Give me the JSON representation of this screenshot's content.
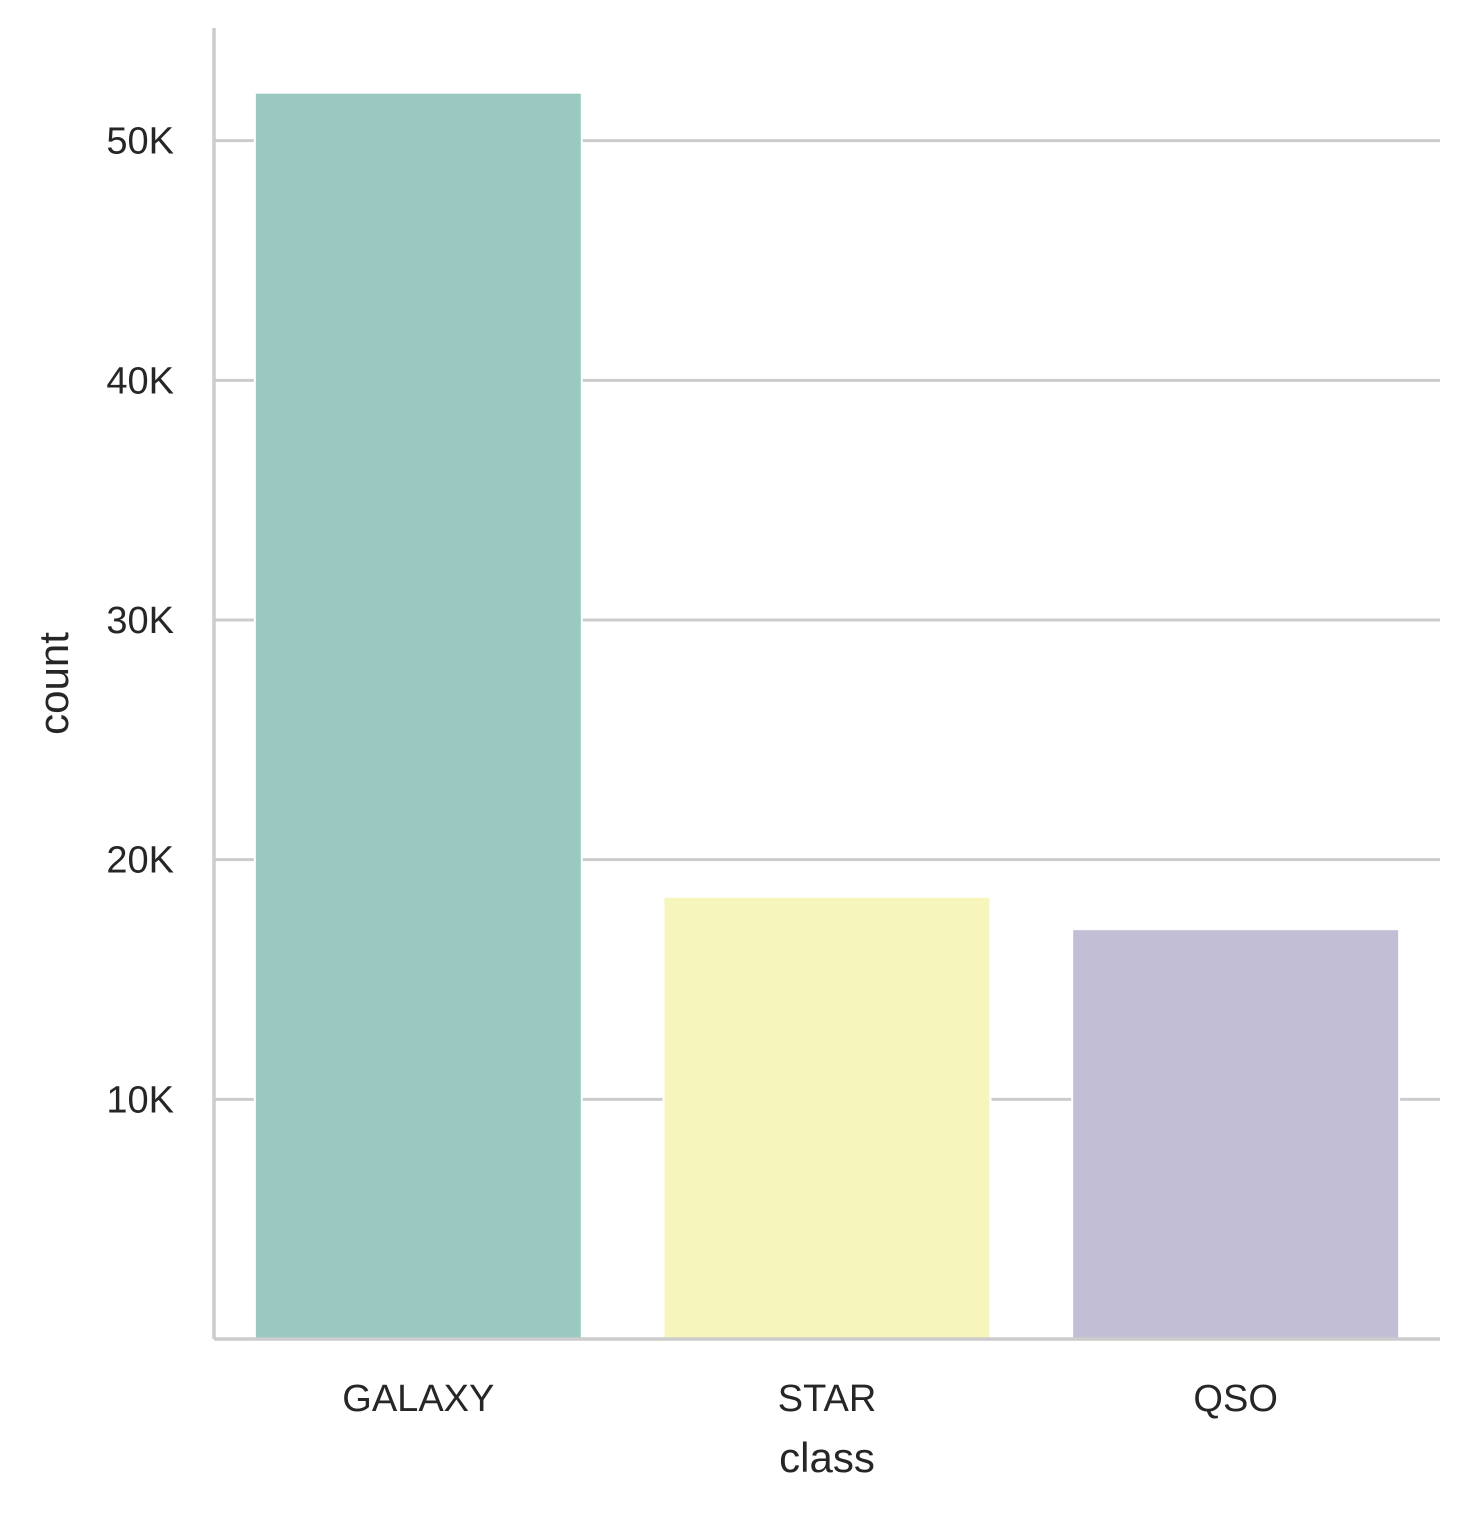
{
  "chart_data": {
    "type": "bar",
    "categories": [
      "GALAXY",
      "STAR",
      "QSO"
    ],
    "values": [
      52000,
      18450,
      17100
    ],
    "colors": [
      "#99c9c1",
      "#f6f5bb",
      "#c2bed6"
    ],
    "title": "",
    "xlabel": "class",
    "ylabel": "count",
    "ylim": [
      0,
      54700
    ],
    "yticks": [
      10000,
      20000,
      30000,
      40000,
      50000
    ],
    "ytick_labels": [
      "10K",
      "20K",
      "30K",
      "40K",
      "50K"
    ],
    "grid": "horizontal",
    "grid_color": "#cccccc",
    "axis_color": "#cccccc",
    "text_color": "#262626"
  }
}
